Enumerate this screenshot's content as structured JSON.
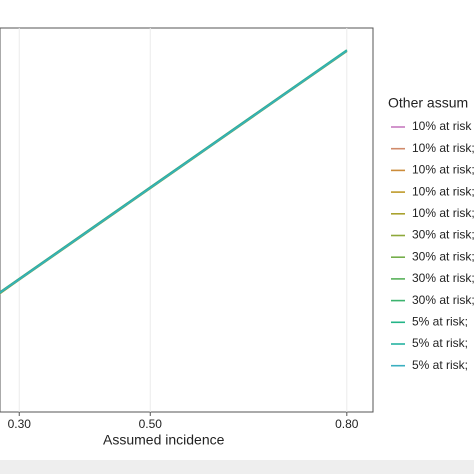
{
  "chart_data": {
    "type": "line",
    "x_label": "Assumed incidence",
    "legend_title": "Other assum",
    "x": [
      0.26,
      0.3,
      0.4,
      0.5,
      0.6,
      0.7,
      0.8
    ],
    "xlim": [
      0.25,
      0.84
    ],
    "xticks": [
      {
        "value": 0.3,
        "label": "0.30"
      },
      {
        "value": 0.5,
        "label": "0.50"
      },
      {
        "value": 0.8,
        "label": "0.80"
      }
    ],
    "ylim": [
      0.01,
      0.85
    ],
    "grid": true,
    "series": [
      {
        "name": "10% at risk",
        "color": "#c67bbf",
        "values": [
          0.26,
          0.3,
          0.4,
          0.5,
          0.6,
          0.7,
          0.8
        ]
      },
      {
        "name": "10% at risk;",
        "color": "#d08a6a",
        "values": [
          0.262,
          0.302,
          0.402,
          0.502,
          0.602,
          0.702,
          0.801
        ]
      },
      {
        "name": "10% at risk;",
        "color": "#cc8c3a",
        "values": [
          0.258,
          0.299,
          0.399,
          0.499,
          0.599,
          0.699,
          0.799
        ]
      },
      {
        "name": "10% at risk;",
        "color": "#bf9a2a",
        "values": [
          0.261,
          0.301,
          0.401,
          0.501,
          0.601,
          0.701,
          0.8
        ]
      },
      {
        "name": "10% at risk;",
        "color": "#a9a22e",
        "values": [
          0.259,
          0.3,
          0.4,
          0.5,
          0.6,
          0.7,
          0.8
        ]
      },
      {
        "name": "30% at risk;",
        "color": "#8ea83a",
        "values": [
          0.26,
          0.301,
          0.401,
          0.501,
          0.601,
          0.701,
          0.801
        ]
      },
      {
        "name": "30% at risk;",
        "color": "#74ae4a",
        "values": [
          0.261,
          0.3,
          0.4,
          0.5,
          0.6,
          0.7,
          0.8
        ]
      },
      {
        "name": "30% at risk;",
        "color": "#58b15a",
        "values": [
          0.259,
          0.299,
          0.399,
          0.499,
          0.599,
          0.699,
          0.799
        ]
      },
      {
        "name": "30% at risk;",
        "color": "#3cb36e",
        "values": [
          0.26,
          0.3,
          0.4,
          0.5,
          0.6,
          0.7,
          0.8
        ]
      },
      {
        "name": "5% at risk;",
        "color": "#23b487",
        "values": [
          0.262,
          0.302,
          0.402,
          0.502,
          0.602,
          0.702,
          0.802
        ]
      },
      {
        "name": "5% at risk;",
        "color": "#25b3a2",
        "values": [
          0.26,
          0.301,
          0.401,
          0.501,
          0.601,
          0.701,
          0.801
        ]
      },
      {
        "name": "5% at risk;",
        "color": "#3aafc0",
        "values": [
          0.261,
          0.3,
          0.4,
          0.5,
          0.6,
          0.7,
          0.8
        ]
      }
    ]
  }
}
